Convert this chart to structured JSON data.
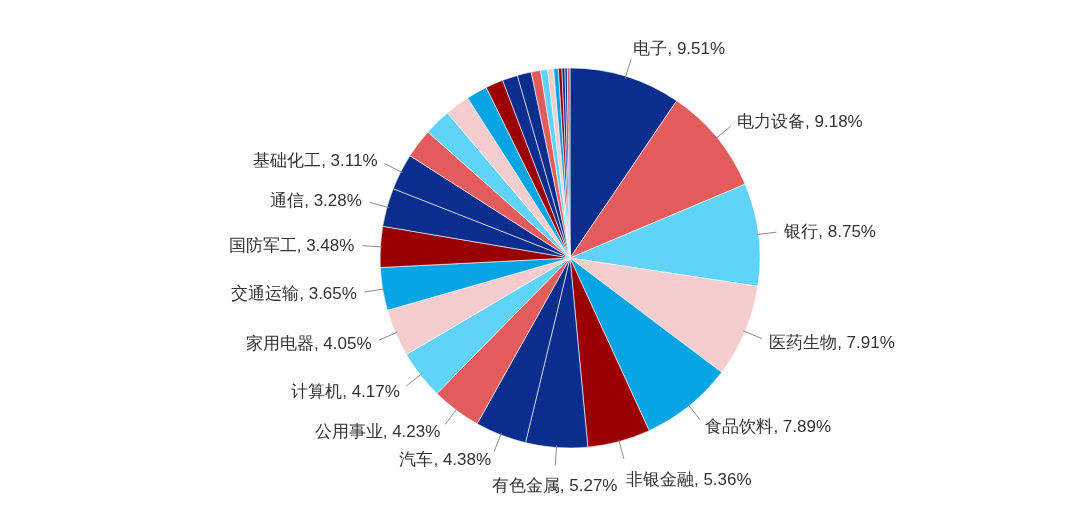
{
  "chart_data": {
    "type": "pie",
    "categories": [
      "电子",
      "电力设备",
      "银行",
      "医药生物",
      "食品饮料",
      "非银金融",
      "有色金属",
      "汽车",
      "公用事业",
      "计算机",
      "家用电器",
      "交通运输",
      "国防军工",
      "通信",
      "基础化工",
      null,
      null,
      null,
      null,
      null,
      null,
      null,
      null,
      null,
      null,
      null,
      null,
      null,
      null,
      null
    ],
    "values": [
      9.51,
      9.18,
      8.75,
      7.91,
      7.89,
      5.36,
      5.27,
      4.38,
      4.23,
      4.17,
      4.05,
      3.65,
      3.48,
      3.28,
      3.11,
      2.5,
      2.3,
      2.1,
      1.8,
      1.5,
      1.3,
      1.2,
      0.8,
      0.6,
      0.5,
      0.4,
      0.3,
      0.25,
      0.2,
      0.23
    ],
    "value_labels": [
      "9.51%",
      "9.18%",
      "8.75%",
      "7.91%",
      "7.89%",
      "5.36%",
      "5.27%",
      "4.38%",
      "4.23%",
      "4.17%",
      "4.05%",
      "3.65%",
      "3.48%",
      "3.28%",
      "3.11%",
      null,
      null,
      null,
      null,
      null,
      null,
      null,
      null,
      null,
      null,
      null,
      null,
      null,
      null,
      null
    ],
    "colors": [
      "#0b2e8e",
      "#e25c5c",
      "#5fd4f8",
      "#f6cdcf",
      "#08a5e4",
      "#9a0000",
      "#0b2e8e",
      "#0b2e8e",
      "#e25c5c",
      "#5fd4f8",
      "#f6cdcf",
      "#08a5e4",
      "#9a0000",
      "#0b2e8e",
      "#0b2e8e",
      "#e25c5c",
      "#5fd4f8",
      "#f6cdcf",
      "#08a5e4",
      "#9a0000",
      "#0b2e8e",
      "#0b2e8e",
      "#e25c5c",
      "#5fd4f8",
      "#f6cdcf",
      "#08a5e4",
      "#9a0000",
      "#0b2e8e",
      "#0b2e8e",
      "#e25c5c"
    ]
  }
}
